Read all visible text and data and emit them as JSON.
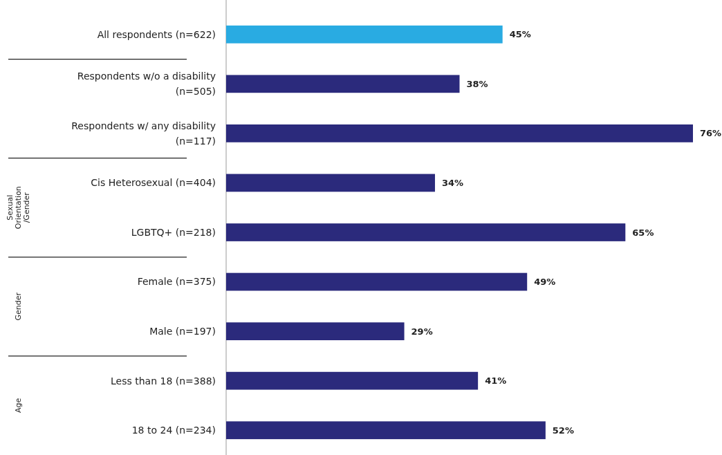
{
  "chart_data": {
    "type": "bar",
    "orientation": "horizontal",
    "categories": [
      "All respondents (n=622)",
      "Respondents w/o a disability (n=505)",
      "Respondents w/ any disability (n=117)",
      "Cis Heterosexual (n=404)",
      "LGBTQ+ (n=218)",
      "Female (n=375)",
      "Male (n=197)",
      "Less than 18 (n=388)",
      "18 to 24 (n=234)"
    ],
    "values": [
      45,
      38,
      76,
      34,
      65,
      49,
      29,
      41,
      52
    ],
    "colors": [
      "#29abe2",
      "#2b2a7c",
      "#2b2a7c",
      "#2b2a7c",
      "#2b2a7c",
      "#2b2a7c",
      "#2b2a7c",
      "#2b2a7c",
      "#2b2a7c"
    ],
    "value_labels": [
      "45%",
      "38%",
      "76%",
      "34%",
      "65%",
      "49%",
      "29%",
      "41%",
      "52%"
    ],
    "annotations": [
      "Sexual Orientation /Gender",
      "Gender",
      "Age"
    ]
  }
}
